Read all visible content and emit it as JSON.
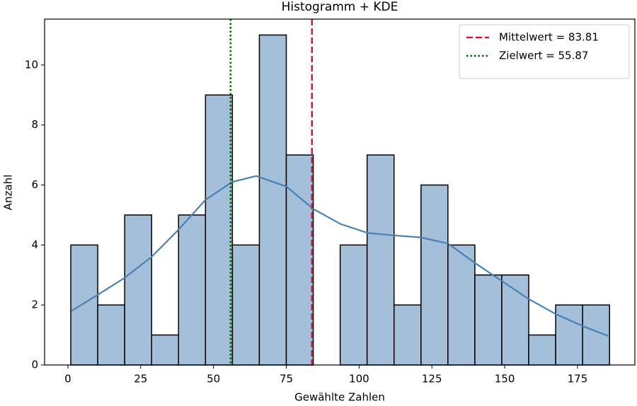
{
  "chart_data": {
    "type": "histogram",
    "title": "Histogramm + KDE",
    "x_label": "Gewählte Zahlen",
    "y_label": "Anzahl",
    "bins": [
      1,
      10.25,
      19.5,
      28.75,
      38,
      47.25,
      56.5,
      65.75,
      75,
      84.25,
      93.5,
      102.75,
      112,
      121.25,
      130.5,
      139.75,
      149,
      158.25,
      167.5,
      176.75,
      186
    ],
    "values": [
      4,
      2,
      5,
      1,
      5,
      9,
      4,
      11,
      7,
      0,
      4,
      7,
      2,
      6,
      4,
      3,
      3,
      1,
      2,
      2
    ],
    "color": "#a3bfd9",
    "kde": {
      "color": "#4682b4",
      "x": [
        1.2,
        10.45,
        19.4,
        28.7,
        37.9,
        47.2,
        56.4,
        64.7,
        75,
        84.3,
        93.6,
        103,
        112,
        121.3,
        130.5,
        139.8,
        149,
        158.2,
        167.5,
        176.7,
        186
      ],
      "y": [
        1.8,
        2.35,
        2.9,
        3.6,
        4.5,
        5.5,
        6.1,
        6.3,
        5.95,
        5.2,
        4.7,
        4.4,
        4.32,
        4.25,
        4.05,
        3.4,
        2.8,
        2.2,
        1.7,
        1.3,
        0.95
      ]
    },
    "vlines": [
      {
        "name": "Mittelwert = 83.81",
        "value": 83.81,
        "color": "#dc143c",
        "dash": "dashed"
      },
      {
        "name": "Zielwert = 55.87",
        "value": 55.87,
        "color": "#006400",
        "dash": "dotted"
      }
    ],
    "legend": "upper right",
    "xlim": [
      -8.0,
      194.7
    ],
    "ylim": [
      0,
      11.53
    ],
    "xticks": [
      0,
      25,
      50,
      75,
      100,
      125,
      150,
      175
    ],
    "yticks": [
      0,
      2,
      4,
      6,
      8,
      10
    ]
  }
}
